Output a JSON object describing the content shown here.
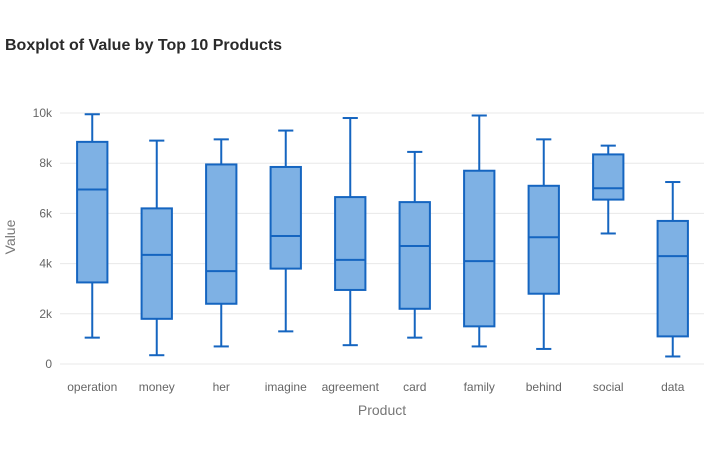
{
  "chart_data": {
    "type": "box",
    "title": "Boxplot of Value by Top 10 Products",
    "xlabel": "Product",
    "ylabel": "Value",
    "ylim": [
      0,
      10000
    ],
    "yticks": [
      0,
      2000,
      4000,
      6000,
      8000,
      10000
    ],
    "ytick_labels": [
      "0",
      "2k",
      "4k",
      "6k",
      "8k",
      "10k"
    ],
    "grid": true,
    "legend": "none",
    "fill_color": "#7eb1e4",
    "line_color": "#1565c0",
    "categories": [
      "operation",
      "money",
      "her",
      "imagine",
      "agreement",
      "card",
      "family",
      "behind",
      "social",
      "data"
    ],
    "boxes": [
      {
        "min": 1050,
        "q1": 3250,
        "median": 6950,
        "q3": 8850,
        "max": 9950
      },
      {
        "min": 350,
        "q1": 1800,
        "median": 4350,
        "q3": 6200,
        "max": 8900
      },
      {
        "min": 700,
        "q1": 2400,
        "median": 3700,
        "q3": 7950,
        "max": 8950
      },
      {
        "min": 1300,
        "q1": 3800,
        "median": 5100,
        "q3": 7850,
        "max": 9300
      },
      {
        "min": 750,
        "q1": 2950,
        "median": 4150,
        "q3": 6650,
        "max": 9800
      },
      {
        "min": 1050,
        "q1": 2200,
        "median": 4700,
        "q3": 6450,
        "max": 8450
      },
      {
        "min": 700,
        "q1": 1500,
        "median": 4100,
        "q3": 7700,
        "max": 9900
      },
      {
        "min": 600,
        "q1": 2800,
        "median": 5050,
        "q3": 7100,
        "max": 8950
      },
      {
        "min": 5200,
        "q1": 6550,
        "median": 7000,
        "q3": 8350,
        "max": 8700
      },
      {
        "min": 300,
        "q1": 1100,
        "median": 4300,
        "q3": 5700,
        "max": 7250
      }
    ]
  }
}
